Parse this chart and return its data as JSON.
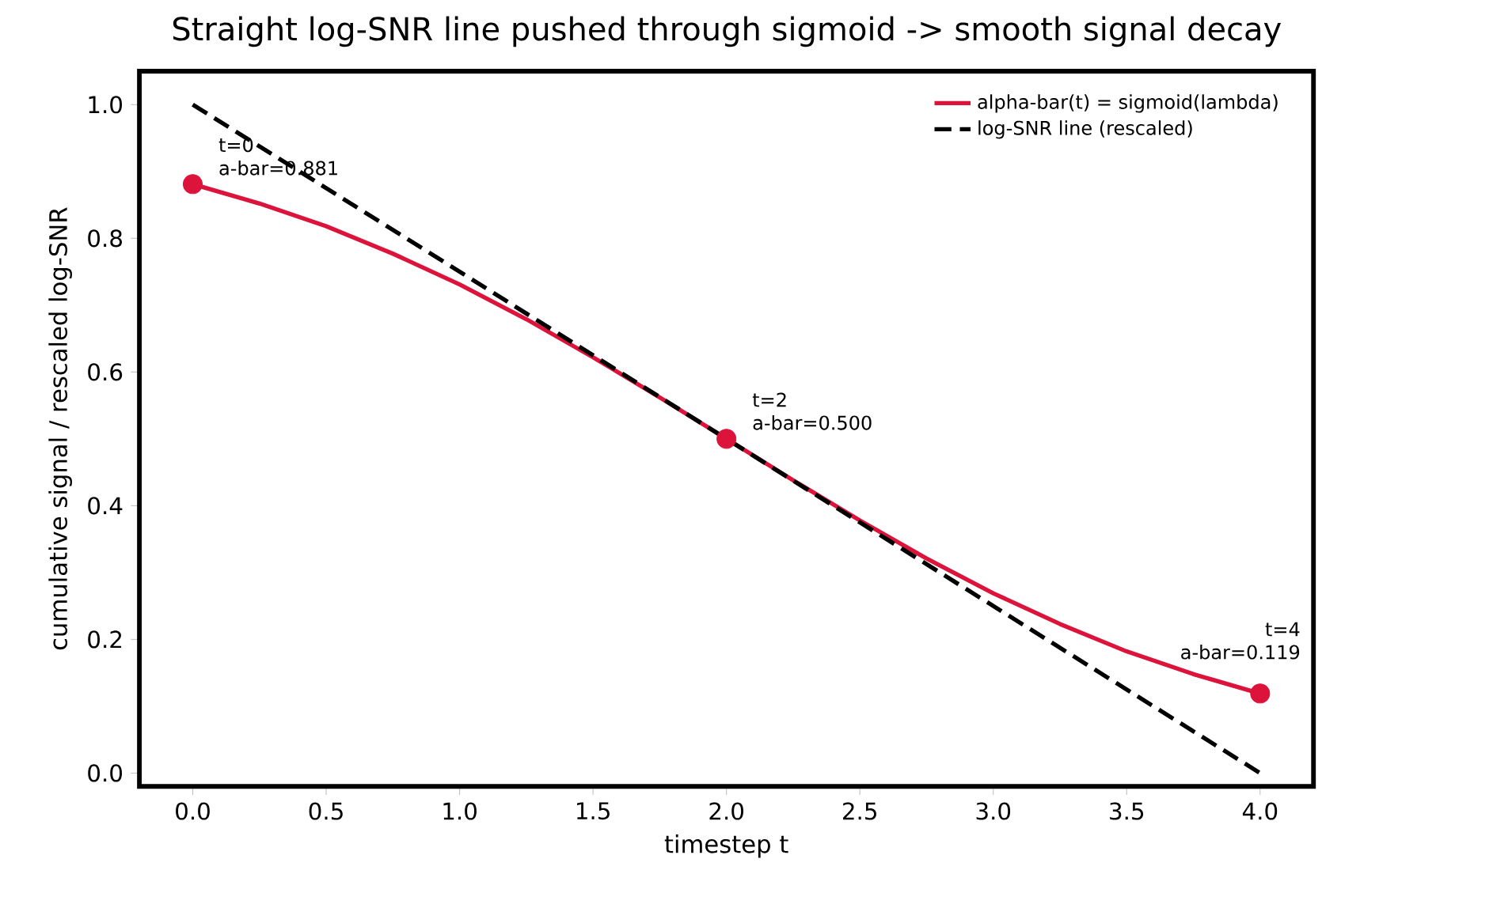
{
  "chart_data": {
    "type": "line",
    "title": "Straight log-SNR line pushed through sigmoid -> smooth signal decay",
    "xlabel": "timestep t",
    "ylabel": "cumulative signal / rescaled log-SNR",
    "xlim": [
      -0.2,
      4.2
    ],
    "ylim": [
      -0.02,
      1.05
    ],
    "xticks": [
      {
        "value": 0,
        "label": "0.0"
      },
      {
        "value": 0.5,
        "label": "0.5"
      },
      {
        "value": 1,
        "label": "1.0"
      },
      {
        "value": 1.5,
        "label": "1.5"
      },
      {
        "value": 2,
        "label": "2.0"
      },
      {
        "value": 2.5,
        "label": "2.5"
      },
      {
        "value": 3,
        "label": "3.0"
      },
      {
        "value": 3.5,
        "label": "3.5"
      },
      {
        "value": 4,
        "label": "4.0"
      }
    ],
    "yticks": [
      {
        "value": 0,
        "label": "0.0"
      },
      {
        "value": 0.2,
        "label": "0.2"
      },
      {
        "value": 0.4,
        "label": "0.4"
      },
      {
        "value": 0.6,
        "label": "0.6"
      },
      {
        "value": 0.8,
        "label": "0.8"
      },
      {
        "value": 1,
        "label": "1.0"
      }
    ],
    "legend": "top right",
    "series": [
      {
        "name": "alpha-bar(t) = sigmoid(lambda)",
        "color": "#dc143c",
        "line_style": "solid",
        "x": [
          0,
          0.25,
          0.5,
          0.75,
          1,
          1.25,
          1.5,
          1.75,
          2,
          2.25,
          2.5,
          2.75,
          3,
          3.25,
          3.5,
          3.75,
          4
        ],
        "values": [
          0.881,
          0.852,
          0.818,
          0.777,
          0.731,
          0.679,
          0.622,
          0.562,
          0.5,
          0.438,
          0.378,
          0.321,
          0.269,
          0.223,
          0.182,
          0.148,
          0.119
        ]
      },
      {
        "name": "log-SNR line (rescaled)",
        "color": "#000000",
        "line_style": "dashed",
        "x": [
          0,
          4
        ],
        "values": [
          1,
          0
        ]
      },
      {
        "type": "scatter",
        "color": "#dc143c",
        "marker": "circle",
        "x": [
          0,
          2,
          4
        ],
        "values": [
          0.881,
          0.5,
          0.119
        ]
      }
    ],
    "annotations": [
      {
        "text": "t=0",
        "x": 0,
        "y": 0.881
      },
      {
        "text": "a-bar=0.881",
        "x": 0,
        "y": 0.881
      },
      {
        "text": "t=2",
        "x": 2,
        "y": 0.5
      },
      {
        "text": "a-bar=0.500",
        "x": 2,
        "y": 0.5
      },
      "t=4",
      {
        "text": "a-bar=0.119",
        "x": 4,
        "y": 0.119
      }
    ]
  }
}
